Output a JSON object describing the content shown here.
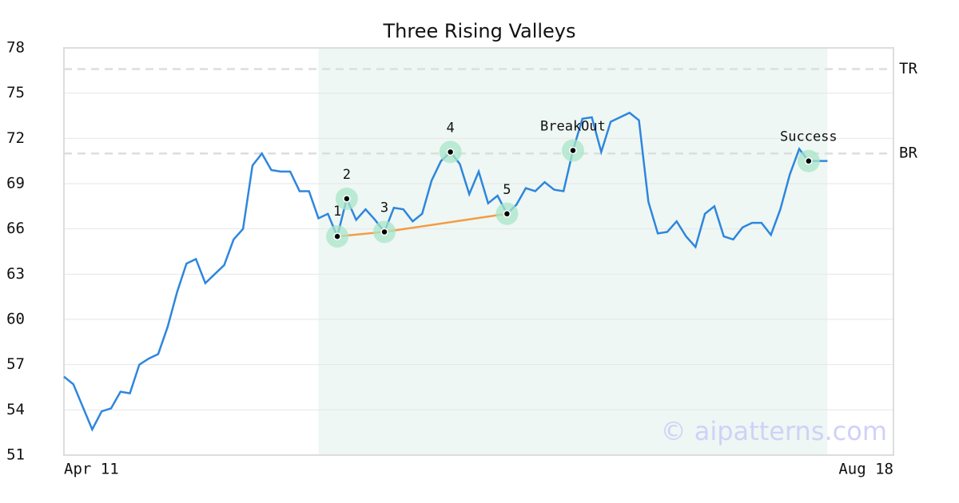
{
  "chart_data": {
    "type": "line",
    "title": "Three Rising Valleys",
    "series": [
      {
        "color": "#2e86de",
        "values": [
          56.2,
          55.7,
          54.2,
          52.7,
          53.9,
          54.1,
          55.2,
          55.1,
          57.0,
          57.4,
          57.7,
          59.5,
          61.8,
          63.7,
          64.0,
          62.4,
          63.0,
          63.6,
          65.3,
          66.0,
          70.2,
          71.0,
          69.9,
          69.8,
          69.8,
          68.5,
          68.5,
          66.7,
          67.0,
          65.5,
          68.0,
          66.6,
          67.3,
          66.6,
          65.8,
          67.4,
          67.3,
          66.5,
          67.0,
          69.2,
          70.5,
          71.1,
          70.3,
          68.3,
          69.8,
          67.7,
          68.2,
          67.0,
          67.6,
          68.7,
          68.5,
          69.1,
          68.6,
          68.5,
          71.2,
          73.3,
          73.4,
          71.1,
          73.1,
          73.4,
          73.7,
          73.2,
          67.8,
          65.7,
          65.8,
          66.5,
          65.5,
          64.8,
          67.0,
          67.5,
          65.5,
          65.3,
          66.1,
          66.4,
          66.4,
          65.6,
          67.3,
          69.6,
          71.3,
          70.5,
          70.5,
          70.5
        ]
      }
    ],
    "xlim": [
      0,
      88
    ],
    "xticks": [
      {
        "value": 0,
        "label": "Apr 11"
      },
      {
        "value": 88,
        "label": "Aug 18"
      }
    ],
    "ylim": [
      51,
      78
    ],
    "yticks": [
      51,
      54,
      57,
      60,
      63,
      66,
      69,
      72,
      75,
      78
    ],
    "grid": true,
    "shaded_region": [
      27,
      81
    ],
    "levels": [
      {
        "label": "TR",
        "value": 76.6
      },
      {
        "label": "BR",
        "value": 71.0
      }
    ],
    "points": [
      {
        "label": "1",
        "index": 29
      },
      {
        "label": "2",
        "index": 30
      },
      {
        "label": "3",
        "index": 34
      },
      {
        "label": "4",
        "index": 41
      },
      {
        "label": "5",
        "index": 47
      },
      {
        "label": "BreakOut",
        "index": 54
      },
      {
        "label": "Success",
        "index": 79
      }
    ],
    "trend_points": [
      0,
      2,
      4
    ],
    "watermark": "© aipatterns.com"
  }
}
